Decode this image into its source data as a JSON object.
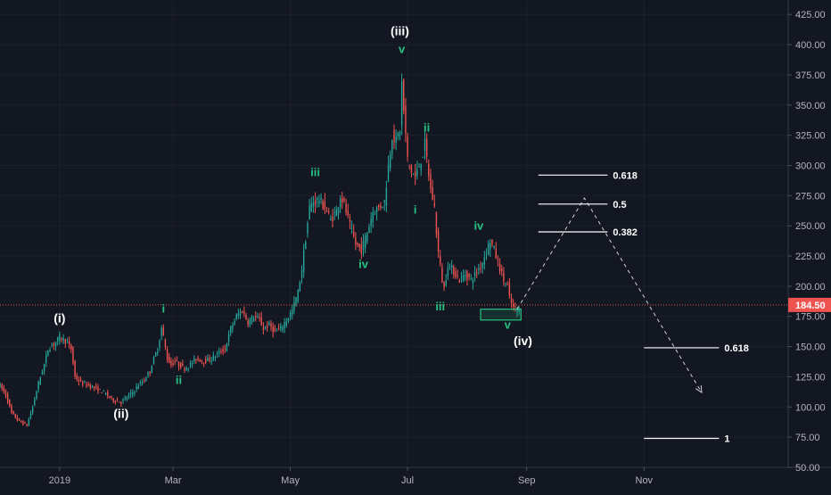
{
  "chart_data": {
    "type": "candlestick",
    "y_axis": {
      "ticks": [
        "425.00",
        "400.00",
        "375.00",
        "350.00",
        "325.00",
        "300.00",
        "275.00",
        "250.00",
        "225.00",
        "200.00",
        "175.00",
        "150.00",
        "125.00",
        "100.00",
        "75.00",
        "50.00"
      ],
      "ylim": [
        50,
        437
      ]
    },
    "x_axis": {
      "ticks": [
        {
          "label": "2019",
          "day": 31
        },
        {
          "label": "Mar",
          "day": 90
        },
        {
          "label": "May",
          "day": 151
        },
        {
          "label": "Jul",
          "day": 212
        },
        {
          "label": "Sep",
          "day": 274
        },
        {
          "label": "Nov",
          "day": 335
        }
      ],
      "xlim": [
        0,
        410
      ]
    },
    "price_keypoints": [
      [
        0,
        118
      ],
      [
        3,
        110
      ],
      [
        6,
        95
      ],
      [
        10,
        88
      ],
      [
        14,
        85
      ],
      [
        17,
        100
      ],
      [
        20,
        120
      ],
      [
        23,
        135
      ],
      [
        25,
        148
      ],
      [
        28,
        152
      ],
      [
        31,
        158
      ],
      [
        34,
        155
      ],
      [
        37,
        148
      ],
      [
        39,
        125
      ],
      [
        42,
        120
      ],
      [
        46,
        118
      ],
      [
        50,
        115
      ],
      [
        54,
        112
      ],
      [
        57,
        108
      ],
      [
        60,
        105
      ],
      [
        63,
        104
      ],
      [
        66,
        108
      ],
      [
        69,
        112
      ],
      [
        72,
        118
      ],
      [
        75,
        122
      ],
      [
        78,
        130
      ],
      [
        80,
        140
      ],
      [
        82,
        148
      ],
      [
        84,
        165
      ],
      [
        85,
        158
      ],
      [
        87,
        140
      ],
      [
        89,
        135
      ],
      [
        91,
        138
      ],
      [
        93,
        135
      ],
      [
        96,
        132
      ],
      [
        99,
        135
      ],
      [
        102,
        140
      ],
      [
        106,
        138
      ],
      [
        110,
        140
      ],
      [
        114,
        145
      ],
      [
        117,
        148
      ],
      [
        120,
        165
      ],
      [
        123,
        175
      ],
      [
        126,
        180
      ],
      [
        129,
        170
      ],
      [
        132,
        175
      ],
      [
        135,
        172
      ],
      [
        137,
        165
      ],
      [
        140,
        168
      ],
      [
        143,
        162
      ],
      [
        146,
        165
      ],
      [
        149,
        172
      ],
      [
        152,
        180
      ],
      [
        155,
        195
      ],
      [
        157,
        215
      ],
      [
        159,
        240
      ],
      [
        161,
        265
      ],
      [
        163,
        270
      ],
      [
        166,
        272
      ],
      [
        169,
        265
      ],
      [
        172,
        255
      ],
      [
        175,
        262
      ],
      [
        177,
        275
      ],
      [
        179,
        268
      ],
      [
        182,
        250
      ],
      [
        185,
        235
      ],
      [
        188,
        230
      ],
      [
        191,
        245
      ],
      [
        194,
        262
      ],
      [
        197,
        265
      ],
      [
        200,
        270
      ],
      [
        202,
        300
      ],
      [
        204,
        325
      ],
      [
        206,
        320
      ],
      [
        208,
        330
      ],
      [
        209,
        368
      ],
      [
        210,
        345
      ],
      [
        212,
        305
      ],
      [
        214,
        295
      ],
      [
        216,
        290
      ],
      [
        218,
        300
      ],
      [
        220,
        310
      ],
      [
        221,
        318
      ],
      [
        222,
        305
      ],
      [
        224,
        280
      ],
      [
        226,
        265
      ],
      [
        227,
        245
      ],
      [
        228,
        228
      ],
      [
        230,
        205
      ],
      [
        231,
        198
      ],
      [
        233,
        218
      ],
      [
        236,
        212
      ],
      [
        239,
        205
      ],
      [
        242,
        210
      ],
      [
        245,
        205
      ],
      [
        248,
        212
      ],
      [
        251,
        220
      ],
      [
        253,
        230
      ],
      [
        255,
        238
      ],
      [
        257,
        230
      ],
      [
        259,
        220
      ],
      [
        262,
        205
      ],
      [
        264,
        200
      ],
      [
        265,
        190
      ],
      [
        267,
        182
      ],
      [
        270,
        180
      ]
    ],
    "price_line": {
      "value": 184.5,
      "label": "184.50",
      "color": "#ef5350"
    },
    "wave_labels": [
      {
        "text": "(i)",
        "x": 31,
        "y": 170,
        "level": "main"
      },
      {
        "text": "(ii)",
        "x": 63,
        "y": 91,
        "level": "main"
      },
      {
        "text": "(iii)",
        "x": 208,
        "y": 408,
        "level": "main"
      },
      {
        "text": "(iv)",
        "x": 272,
        "y": 151,
        "level": "main"
      },
      {
        "text": "i",
        "x": 85,
        "y": 178,
        "level": "sub"
      },
      {
        "text": "ii",
        "x": 93,
        "y": 119,
        "level": "sub"
      },
      {
        "text": "iii",
        "x": 164,
        "y": 291,
        "level": "sub"
      },
      {
        "text": "iv",
        "x": 189,
        "y": 215,
        "level": "sub"
      },
      {
        "text": "v",
        "x": 209,
        "y": 393,
        "level": "sub"
      },
      {
        "text": "i",
        "x": 216,
        "y": 260,
        "level": "sub"
      },
      {
        "text": "ii",
        "x": 222,
        "y": 328,
        "level": "sub"
      },
      {
        "text": "iii",
        "x": 229,
        "y": 180,
        "level": "sub"
      },
      {
        "text": "iv",
        "x": 249,
        "y": 247,
        "level": "sub"
      },
      {
        "text": "v",
        "x": 264,
        "y": 165,
        "level": "sub"
      }
    ],
    "target_box": {
      "x_from": 250,
      "x_to": 271,
      "y_from": 172,
      "y_to": 181
    },
    "projection": [
      {
        "x": 269,
        "y": 181
      },
      {
        "x": 304,
        "y": 273
      },
      {
        "x": 365,
        "y": 112
      }
    ],
    "fib_levels": [
      {
        "label": "0.618",
        "value": 292,
        "x_from": 280,
        "x_to": 316
      },
      {
        "label": "0.5",
        "value": 268,
        "x_from": 280,
        "x_to": 316
      },
      {
        "label": "0.382",
        "value": 245,
        "x_from": 280,
        "x_to": 316
      },
      {
        "label": "0.618",
        "value": 149,
        "x_from": 335,
        "x_to": 374
      },
      {
        "label": "1",
        "value": 74,
        "x_from": 335,
        "x_to": 374
      }
    ],
    "colors": {
      "background": "#131722",
      "up": "#26a69a",
      "down": "#ef5350",
      "wave_sub": "#26c281",
      "wave_main": "#ffffff",
      "grid": "#2a2e39",
      "axis_text": "#b2b5be"
    }
  }
}
